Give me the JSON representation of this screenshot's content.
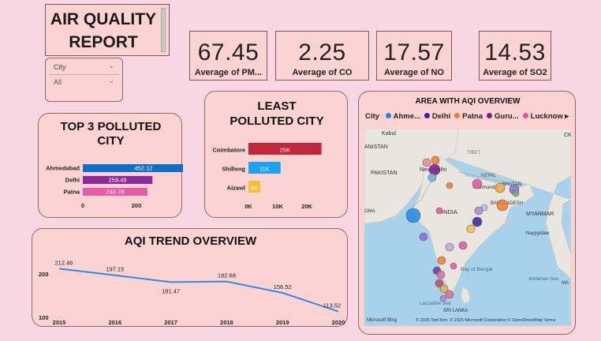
{
  "report": {
    "title_line1": "AIR QUALITY",
    "title_line2": "REPORT"
  },
  "slicer": {
    "label": "City",
    "value": "All"
  },
  "kpis": [
    {
      "value": "67.45",
      "label": "Average of PM..."
    },
    {
      "value": "2.25",
      "label": "Average of CO"
    },
    {
      "value": "17.57",
      "label": "Average of NO"
    },
    {
      "value": "14.53",
      "label": "Average of SO2"
    }
  ],
  "colors": {
    "background": "#f8d7e2",
    "card": "#fcd3d3",
    "line": "#2f8be8"
  },
  "chart_data": [
    {
      "type": "bar",
      "orientation": "horizontal",
      "title": "TOP 3 POLLUTED CITY",
      "title_line1": "TOP 3 POLLUTED",
      "title_line2": "CITY",
      "categories": [
        "Ahmedabad",
        "Delhi",
        "Patna"
      ],
      "values": [
        452.12,
        259.49,
        240.78
      ],
      "value_labels": [
        "452.12",
        "259.49",
        "240.78"
      ],
      "colors": [
        "#0f6fc6",
        "#8b2a9e",
        "#e45ba6"
      ],
      "xlim": [
        0,
        500
      ],
      "xticks": [
        0,
        200,
        400
      ],
      "xtick_labels": [
        "0",
        "200",
        "400"
      ]
    },
    {
      "type": "bar",
      "orientation": "horizontal",
      "title": "LEAST POLLUTED CITY",
      "title_line1": "LEAST",
      "title_line2": "POLLUTED CITY",
      "categories": [
        "Coimbatore",
        "Shillong",
        "Aizawl"
      ],
      "values": [
        25000,
        11000,
        4000
      ],
      "value_labels": [
        "25K",
        "11K",
        "4K"
      ],
      "colors": [
        "#c0283a",
        "#1aa3f0",
        "#f2c12e"
      ],
      "xlim": [
        0,
        27000
      ],
      "xticks": [
        0,
        10000,
        20000
      ],
      "xtick_labels": [
        "0K",
        "10K",
        "20K"
      ]
    },
    {
      "type": "line",
      "title": "AQI TREND OVERVIEW",
      "x": [
        "2015",
        "2016",
        "2017",
        "2018",
        "2019",
        "2020"
      ],
      "values": [
        212.46,
        197.15,
        181.47,
        182.68,
        156.52,
        113.52
      ],
      "value_labels": [
        "212.46",
        "197.15",
        "181.47",
        "182.68",
        "156.52",
        "113.52"
      ],
      "ylim": [
        100,
        235
      ],
      "yticks": [
        100,
        200
      ],
      "ytick_labels": [
        "100",
        "200"
      ]
    }
  ],
  "map": {
    "title": "AREA WITH AQI OVERVIEW",
    "legend_title": "City",
    "legend": [
      {
        "name": "Ahme...",
        "color": "#1e88e5"
      },
      {
        "name": "Delhi",
        "color": "#3f1fa0"
      },
      {
        "name": "Patna",
        "color": "#f07c2a"
      },
      {
        "name": "Guru...",
        "color": "#7a1a8c"
      },
      {
        "name": "Lucknow",
        "color": "#e84fa3"
      }
    ],
    "more_icon": "▸",
    "labels": {
      "kabul": "Kabul",
      "afghanistan": "ANISTAN",
      "tibet": "TIBET",
      "pakistan": "PAKISTAN",
      "new_delhi": "New Delhi",
      "nepal": "NEPAL",
      "kathmandu": "Kathmandu",
      "bhutan": "BHUTAN",
      "bangladesh": "BANGLADESH",
      "india": "INDIA",
      "myanmar": "MYANMAR",
      "naypyidaw": "Naypyidaw",
      "bay": "Bay of Bengal",
      "andaman": "Andaman Sea",
      "srilanka": "SRI LANKA",
      "laccadive": "Laccadive Sea",
      "ck": "CK",
      "oma": "OMA",
      "ma": "MA"
    },
    "attribution": "© 2025 TomTom, © 2025 Microsoft Corporation  © OpenStreetMap  Terms",
    "bing": "Microsoft Bing"
  }
}
